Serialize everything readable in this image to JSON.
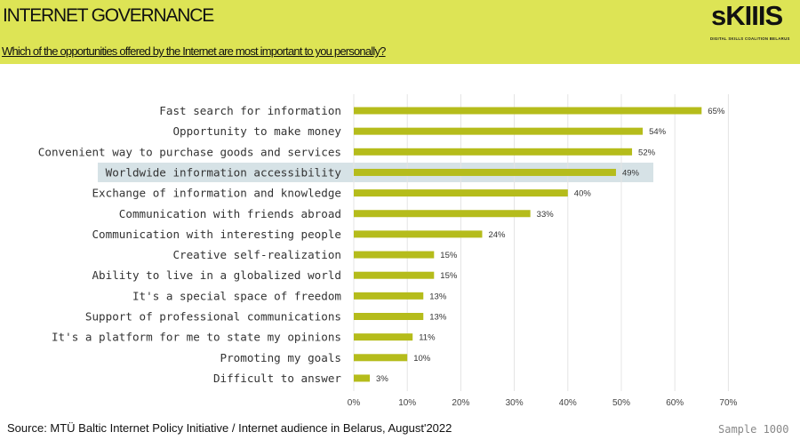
{
  "header": {
    "title": "INTERNET GOVERNANCE",
    "question": "Which of the opportunities offered by the Internet are most important to you personally?",
    "logo_word": "sKIIIS",
    "logo_sub": "DIGITAL SKILLS COALITION BELARUS"
  },
  "footer": {
    "source": "Source: MTÜ Baltic Internet Policy Initiative / Internet audience in Belarus,  August'2022",
    "sample": "Sample 1000"
  },
  "colors": {
    "header_bg": "#dde455",
    "bar": "#b5bc1b",
    "highlight": "#d6e2e6"
  },
  "chart_data": {
    "type": "bar",
    "orientation": "horizontal",
    "categories": [
      "Fast search for information",
      "Opportunity to make money",
      "Convenient way to purchase goods and services",
      "Worldwide information accessibility",
      "Exchange of information and knowledge",
      "Communication with friends abroad",
      "Communication with interesting people",
      "Creative self-realization",
      "Ability to live in a globalized world",
      "It's a special space of freedom",
      "Support of professional communications",
      "It's a platform for me to state my opinions",
      "Promoting my goals",
      "Difficult to answer"
    ],
    "values": [
      65,
      54,
      52,
      49,
      40,
      33,
      24,
      15,
      15,
      13,
      13,
      11,
      10,
      3
    ],
    "data_labels": [
      "65%",
      "54%",
      "52%",
      "49%",
      "40%",
      "33%",
      "24%",
      "15%",
      "15%",
      "13%",
      "13%",
      "11%",
      "10%",
      "3%"
    ],
    "highlighted_category": "Worldwide information accessibility",
    "xlim": [
      0,
      70
    ],
    "xticks": [
      "0%",
      "10%",
      "20%",
      "30%",
      "40%",
      "50%",
      "60%",
      "70%"
    ],
    "grid": "vertical"
  }
}
